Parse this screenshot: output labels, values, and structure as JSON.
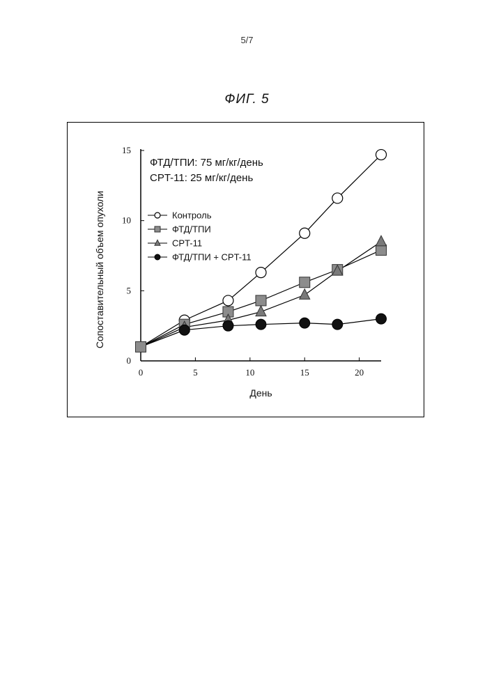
{
  "page": {
    "number": "5/7",
    "figure_title": "ФИГ. 5"
  },
  "chart_data": {
    "type": "line",
    "title": "",
    "xlabel": "День",
    "ylabel": "Сопоставительный объем опухоли",
    "xlim": [
      0,
      22
    ],
    "ylim": [
      0,
      15
    ],
    "xticks": [
      "0",
      "5",
      "10",
      "15",
      "20"
    ],
    "yticks": [
      "0",
      "5",
      "10",
      "15"
    ],
    "grid": false,
    "legend_placement": "left",
    "annotations": [
      "ФТД/ТПИ: 75 мг/кг/день",
      "CPT-11: 25 мг/кг/день"
    ],
    "series": [
      {
        "name": "Контроль",
        "marker": "circle-open",
        "color": "#ffffff",
        "x": [
          0,
          4,
          8,
          11,
          15,
          18,
          22
        ],
        "y": [
          1.0,
          2.9,
          4.3,
          6.3,
          9.1,
          11.6,
          14.7
        ]
      },
      {
        "name": "ФТД/ТПИ",
        "marker": "square",
        "color": "#8c8c8c",
        "x": [
          0,
          4,
          8,
          11,
          15,
          18,
          22
        ],
        "y": [
          1.0,
          2.6,
          3.5,
          4.3,
          5.6,
          6.5,
          7.9
        ]
      },
      {
        "name": "CPT-11",
        "marker": "triangle",
        "color": "#7a7a7a",
        "x": [
          0,
          4,
          8,
          11,
          15,
          18,
          22
        ],
        "y": [
          1.0,
          2.4,
          2.9,
          3.5,
          4.7,
          6.4,
          8.5
        ]
      },
      {
        "name": "ФТД/ТПИ + CPT-11",
        "marker": "circle-filled",
        "color": "#111111",
        "x": [
          0,
          4,
          8,
          11,
          15,
          18,
          22
        ],
        "y": [
          1.0,
          2.2,
          2.5,
          2.6,
          2.7,
          2.6,
          3.0
        ]
      }
    ]
  }
}
